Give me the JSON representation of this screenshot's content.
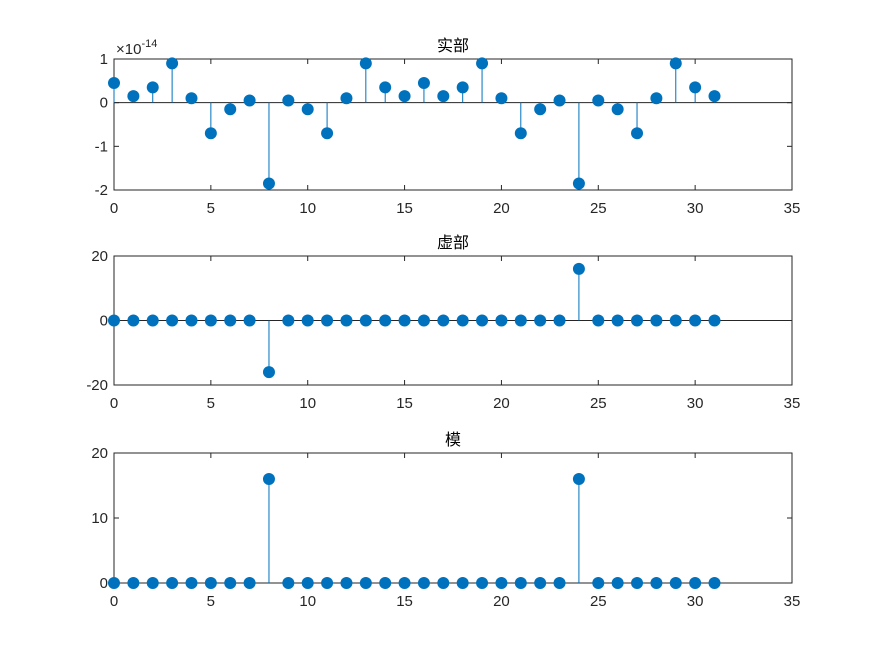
{
  "chart_data": [
    {
      "type": "stem",
      "title": "实部",
      "exponent_label": "×10",
      "exponent_power": "-14",
      "xlim": [
        0,
        35
      ],
      "ylim": [
        -2,
        1
      ],
      "xticks": [
        0,
        5,
        10,
        15,
        20,
        25,
        30,
        35
      ],
      "yticks": [
        1,
        0,
        -1,
        -2
      ],
      "ytick_labels": [
        "1",
        "0",
        "-1",
        "-2"
      ],
      "color": "#0072BD",
      "x": [
        0,
        1,
        2,
        3,
        4,
        5,
        6,
        7,
        8,
        9,
        10,
        11,
        12,
        13,
        14,
        15,
        16,
        17,
        18,
        19,
        20,
        21,
        22,
        23,
        24,
        25,
        26,
        27,
        28,
        29,
        30,
        31
      ],
      "values": [
        0.45,
        0.15,
        0.35,
        0.9,
        0.1,
        -0.7,
        -0.15,
        0.05,
        -1.85,
        0.05,
        -0.15,
        -0.7,
        0.1,
        0.9,
        0.35,
        0.15,
        0.45,
        0.15,
        0.35,
        0.9,
        0.1,
        -0.7,
        -0.15,
        0.05,
        -1.85,
        0.05,
        -0.15,
        -0.7,
        0.1,
        0.9,
        0.35,
        0.15
      ]
    },
    {
      "type": "stem",
      "title": "虚部",
      "xlim": [
        0,
        35
      ],
      "ylim": [
        -20,
        20
      ],
      "xticks": [
        0,
        5,
        10,
        15,
        20,
        25,
        30,
        35
      ],
      "yticks": [
        20,
        0,
        -20
      ],
      "ytick_labels": [
        "20",
        "0",
        "-20"
      ],
      "color": "#0072BD",
      "x": [
        0,
        1,
        2,
        3,
        4,
        5,
        6,
        7,
        8,
        9,
        10,
        11,
        12,
        13,
        14,
        15,
        16,
        17,
        18,
        19,
        20,
        21,
        22,
        23,
        24,
        25,
        26,
        27,
        28,
        29,
        30,
        31
      ],
      "values": [
        0,
        0,
        0,
        0,
        0,
        0,
        0,
        0,
        -16,
        0,
        0,
        0,
        0,
        0,
        0,
        0,
        0,
        0,
        0,
        0,
        0,
        0,
        0,
        0,
        16,
        0,
        0,
        0,
        0,
        0,
        0,
        0
      ]
    },
    {
      "type": "stem",
      "title": "模",
      "xlim": [
        0,
        35
      ],
      "ylim": [
        0,
        20
      ],
      "xticks": [
        0,
        5,
        10,
        15,
        20,
        25,
        30,
        35
      ],
      "yticks": [
        20,
        10,
        0
      ],
      "ytick_labels": [
        "20",
        "10",
        "0"
      ],
      "color": "#0072BD",
      "x": [
        0,
        1,
        2,
        3,
        4,
        5,
        6,
        7,
        8,
        9,
        10,
        11,
        12,
        13,
        14,
        15,
        16,
        17,
        18,
        19,
        20,
        21,
        22,
        23,
        24,
        25,
        26,
        27,
        28,
        29,
        30,
        31
      ],
      "values": [
        0,
        0,
        0,
        0,
        0,
        0,
        0,
        0,
        16,
        0,
        0,
        0,
        0,
        0,
        0,
        0,
        0,
        0,
        0,
        0,
        0,
        0,
        0,
        0,
        16,
        0,
        0,
        0,
        0,
        0,
        0,
        0
      ]
    }
  ]
}
